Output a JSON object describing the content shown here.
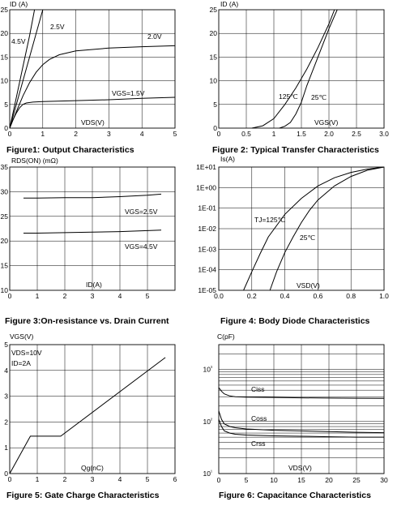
{
  "chart_data": [
    {
      "type": "line",
      "caption": "Figure1: Output Characteristics",
      "ylabel": "ID (A)",
      "xlabel": "VDS(V)",
      "xlim": [
        0,
        5
      ],
      "ylim": [
        0,
        25
      ],
      "xticks": [
        "0",
        "1",
        "2",
        "3",
        "4",
        "5"
      ],
      "yticks": [
        "0",
        "5",
        "10",
        "15",
        "20",
        "25"
      ],
      "series": [
        {
          "name": "4.5V",
          "x": [
            0,
            0.2,
            0.4,
            0.6,
            0.75
          ],
          "y": [
            0,
            6.5,
            13,
            19.5,
            25
          ]
        },
        {
          "name": "2.5V",
          "x": [
            0,
            0.2,
            0.4,
            0.6,
            0.8,
            1.0
          ],
          "y": [
            0,
            5,
            10,
            15,
            20,
            25
          ]
        },
        {
          "name": "2.0V",
          "x": [
            0,
            0.2,
            0.4,
            0.6,
            0.8,
            1.0,
            1.2,
            1.5,
            2.0,
            3.0,
            4.0,
            5.0
          ],
          "y": [
            0,
            3.5,
            6.8,
            9.6,
            11.8,
            13.4,
            14.5,
            15.5,
            16.3,
            16.9,
            17.2,
            17.4
          ]
        },
        {
          "name": "VGS=1.5V",
          "x": [
            0,
            0.1,
            0.2,
            0.3,
            0.4,
            0.5,
            0.7,
            1.0,
            2.0,
            3.0,
            4.0,
            5.0
          ],
          "y": [
            0,
            1.8,
            3.2,
            4.3,
            5.0,
            5.3,
            5.5,
            5.6,
            5.8,
            6.0,
            6.3,
            6.5
          ]
        }
      ],
      "annotations": [
        "4.5V",
        "2.5V",
        "2.0V",
        "VGS=1.5V"
      ]
    },
    {
      "type": "line",
      "caption": "Figure 2: Typical Transfer Characteristics",
      "ylabel": "ID (A)",
      "xlabel": "VGS(V)",
      "xlim": [
        0,
        3.0
      ],
      "ylim": [
        0,
        25
      ],
      "xticks": [
        "0",
        "0.5",
        "1",
        "1.5",
        "2.0",
        "2.5",
        "3.0"
      ],
      "yticks": [
        "0",
        "5",
        "10",
        "15",
        "20",
        "25"
      ],
      "series": [
        {
          "name": "125℃",
          "x": [
            0.6,
            0.8,
            1.0,
            1.2,
            1.4,
            1.6,
            1.8,
            2.0,
            2.1
          ],
          "y": [
            0,
            0.5,
            2,
            5,
            8.5,
            12.5,
            17,
            22,
            25
          ]
        },
        {
          "name": "25℃",
          "x": [
            1.1,
            1.2,
            1.3,
            1.4,
            1.5,
            1.6,
            1.8,
            2.0,
            2.15
          ],
          "y": [
            0,
            0.4,
            1.2,
            3,
            5.5,
            9,
            15,
            21,
            25
          ]
        }
      ],
      "annotations": [
        "125℃",
        "25℃"
      ]
    },
    {
      "type": "line",
      "caption": "Figure 3:On-resistance vs. Drain Current",
      "ylabel": "RDS(ON) (mΩ)",
      "xlabel": "ID(A)",
      "xlim": [
        0,
        6
      ],
      "ylim": [
        10,
        35
      ],
      "xticks": [
        "0",
        "1",
        "2",
        "3",
        "4",
        "5"
      ],
      "yticks": [
        "10",
        "15",
        "20",
        "25",
        "30",
        "35"
      ],
      "series": [
        {
          "name": "VGS=2.5V",
          "x": [
            0.5,
            1,
            2,
            3,
            4,
            5,
            5.5
          ],
          "y": [
            28.7,
            28.7,
            28.8,
            28.8,
            29.0,
            29.3,
            29.5
          ]
        },
        {
          "name": "VGS=4.5V",
          "x": [
            0.5,
            1,
            2,
            3,
            4,
            5,
            5.5
          ],
          "y": [
            21.6,
            21.6,
            21.7,
            21.8,
            21.9,
            22.1,
            22.2
          ]
        }
      ],
      "annotations": [
        "VGS=2.5V",
        "VGS=4.5V"
      ]
    },
    {
      "type": "line",
      "caption": "Figure 4: Body Diode Characteristics",
      "ylabel": "Is(A)",
      "xlabel": "VSD(V)",
      "xlim": [
        0.0,
        1.0
      ],
      "ylim": [
        "1E-05",
        "1E+01"
      ],
      "yscale": "log",
      "xticks": [
        "0.0",
        "0.2",
        "0.4",
        "0.6",
        "0.8",
        "1.0"
      ],
      "yticks": [
        "1E-05",
        "1E-04",
        "1E-03",
        "1E-02",
        "1E-01",
        "1E+00",
        "1E+01"
      ],
      "series": [
        {
          "name": "TJ=125℃",
          "x": [
            0.15,
            0.2,
            0.25,
            0.3,
            0.4,
            0.5,
            0.6,
            0.7,
            0.8,
            0.9,
            1.0
          ],
          "y": [
            1e-05,
            8e-05,
            0.0006,
            0.004,
            0.05,
            0.3,
            1.2,
            3,
            5.5,
            8,
            10
          ]
        },
        {
          "name": "25℃",
          "x": [
            0.31,
            0.35,
            0.4,
            0.45,
            0.5,
            0.55,
            0.6,
            0.7,
            0.8,
            0.9,
            1.0
          ],
          "y": [
            1e-05,
            8e-05,
            0.0007,
            0.004,
            0.02,
            0.08,
            0.25,
            1.2,
            3.5,
            7,
            10
          ]
        }
      ],
      "annotations": [
        "TJ=125℃",
        "25℃"
      ]
    },
    {
      "type": "line",
      "caption": "Figure 5: Gate Charge Characteristics",
      "ylabel": "VGS(V)",
      "xlabel": "Qg(nC)",
      "xlim": [
        0,
        6
      ],
      "ylim": [
        0,
        5
      ],
      "xticks": [
        "0",
        "1",
        "2",
        "3",
        "4",
        "5",
        "6"
      ],
      "yticks": [
        "0",
        "1",
        "2",
        "3",
        "4",
        "5"
      ],
      "series": [
        {
          "name": "VGS",
          "x": [
            0,
            0.75,
            1.85,
            5.65
          ],
          "y": [
            0,
            1.45,
            1.45,
            4.5
          ]
        }
      ],
      "annotations": [
        "VDS=10V",
        "ID=2A"
      ]
    },
    {
      "type": "line",
      "caption": "Figure 6: Capacitance Characteristics",
      "ylabel": "C(pF)",
      "xlabel": "VDS(V)",
      "xlim": [
        0,
        30
      ],
      "ylim": [
        10,
        3000
      ],
      "yscale": "log",
      "xticks": [
        "0",
        "5",
        "10",
        "15",
        "20",
        "25",
        "30"
      ],
      "yticks": [
        "10¹",
        "10²",
        "10³"
      ],
      "series": [
        {
          "name": "Ciss",
          "x": [
            0,
            0.5,
            1,
            2,
            3,
            5,
            10,
            15,
            20,
            25,
            30
          ],
          "y": [
            450,
            380,
            340,
            310,
            300,
            295,
            290,
            285,
            282,
            280,
            278
          ]
        },
        {
          "name": "Coss",
          "x": [
            0,
            0.5,
            1,
            2,
            3,
            5,
            10,
            15,
            20,
            25,
            30
          ],
          "y": [
            160,
            110,
            90,
            80,
            76,
            72,
            68,
            66,
            64,
            62,
            61
          ]
        },
        {
          "name": "Crss",
          "x": [
            0,
            0.5,
            1,
            2,
            3,
            5,
            10,
            15,
            20,
            25,
            30
          ],
          "y": [
            110,
            80,
            66,
            60,
            57,
            55,
            53,
            52,
            51,
            50,
            50
          ]
        }
      ],
      "annotations": [
        "Ciss",
        "Coss",
        "Crss"
      ]
    }
  ]
}
